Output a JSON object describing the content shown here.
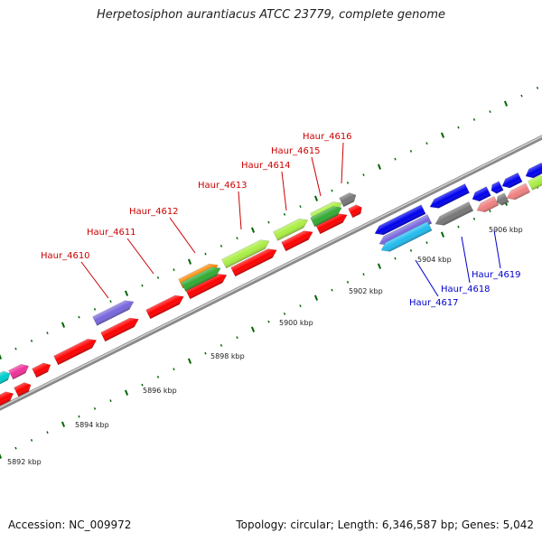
{
  "title": "Herpetosiphon aurantiacus ATCC 23779, complete genome",
  "footer": {
    "accession": "Accession: NC_009972",
    "summary": "Topology: circular; Length: 6,346,587 bp; Genes: 5,042"
  },
  "colors": {
    "backbone": "#999999",
    "tick_outer": "#006600",
    "tick_inner": "#006600",
    "label_red": "#cc0000",
    "label_blue": "#0000cc"
  },
  "scale_labels": [
    "5892 kbp",
    "5894 kbp",
    "5896 kbp",
    "5898 kbp",
    "5900 kbp",
    "5902 kbp",
    "5904 kbp",
    "5906 kbp"
  ],
  "gene_labels": [
    {
      "text": "Haur_4610",
      "strand": "forward"
    },
    {
      "text": "Haur_4611",
      "strand": "forward"
    },
    {
      "text": "Haur_4612",
      "strand": "forward"
    },
    {
      "text": "Haur_4613",
      "strand": "forward"
    },
    {
      "text": "Haur_4614",
      "strand": "forward"
    },
    {
      "text": "Haur_4615",
      "strand": "forward"
    },
    {
      "text": "Haur_4616",
      "strand": "forward"
    },
    {
      "text": "Haur_4617",
      "strand": "reverse"
    },
    {
      "text": "Haur_4618",
      "strand": "reverse"
    },
    {
      "text": "Haur_4619",
      "strand": "reverse"
    }
  ],
  "feature_colors": {
    "red": "#ff0000",
    "blue": "#0000ee",
    "purple": "#7766dd",
    "lightgreen": "#aaee44",
    "green": "#33aa33",
    "orange": "#ff8800",
    "gray": "#777777",
    "pink": "#f08080",
    "cyan": "#22bbee",
    "teal": "#00cccc",
    "magenta": "#ee3399"
  }
}
